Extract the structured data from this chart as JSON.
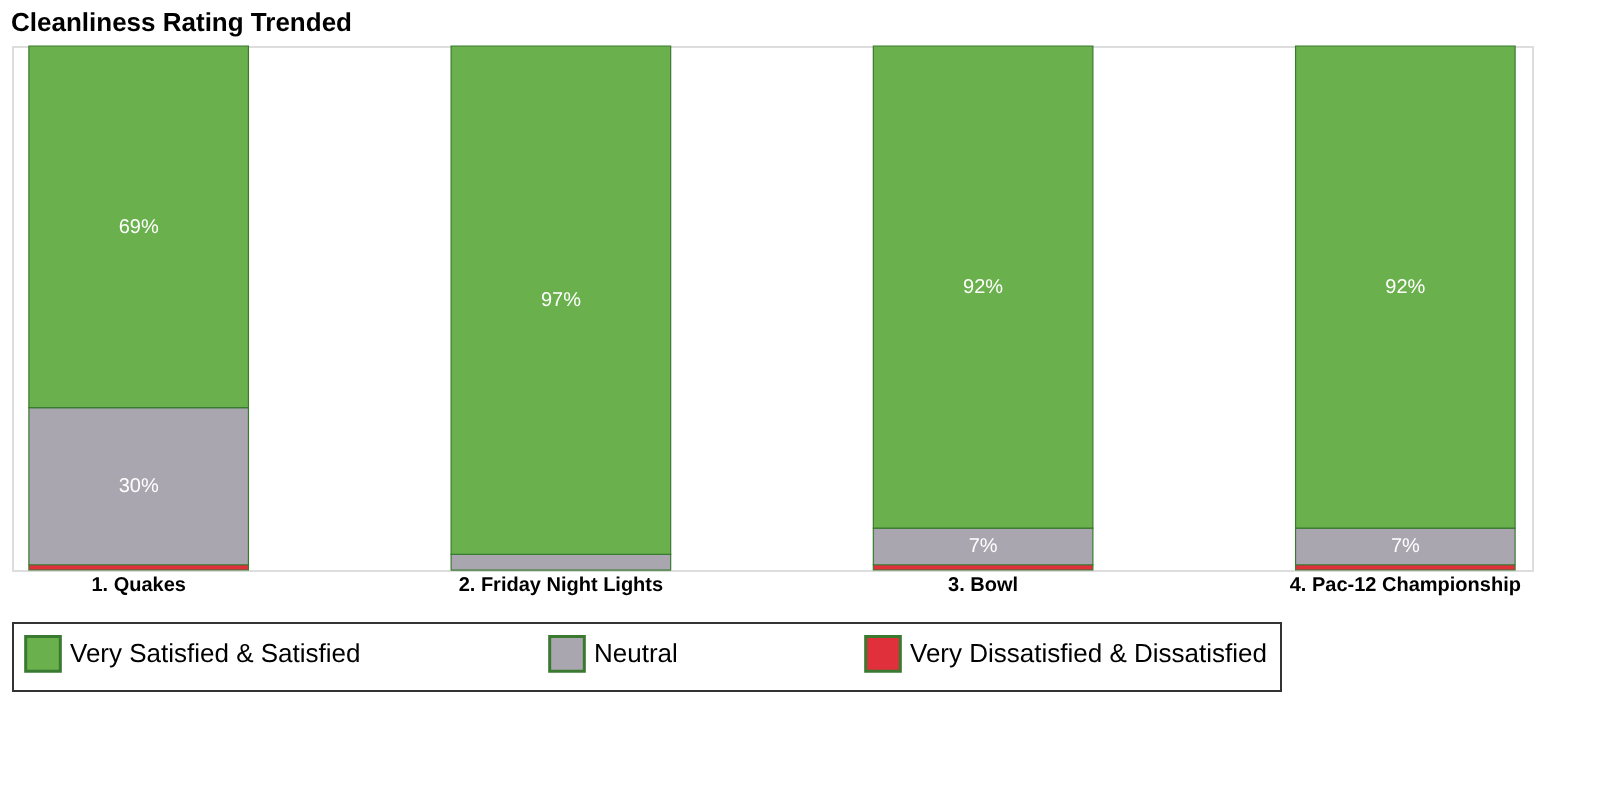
{
  "chart_data": {
    "type": "bar",
    "title": "Cleanliness Rating Trended",
    "stacked": true,
    "categories": [
      "1. Quakes",
      "2. Friday Night Lights",
      "3. Bowl",
      "4. Pac-12 Championship"
    ],
    "series": [
      {
        "name": "Very Dissatisfied & Dissatisfied",
        "color": "#e0303c",
        "values": [
          1,
          0,
          1,
          1
        ],
        "value_labels": [
          null,
          null,
          null,
          null
        ]
      },
      {
        "name": "Neutral",
        "color": "#a9a6b0",
        "values": [
          30,
          3,
          7,
          7
        ],
        "value_labels": [
          "30%",
          null,
          "7%",
          "7%"
        ]
      },
      {
        "name": "Very Satisfied & Satisfied",
        "color": "#6ab04c",
        "values": [
          69,
          97,
          92,
          92
        ],
        "value_labels": [
          "69%",
          "97%",
          "92%",
          "92%"
        ]
      }
    ],
    "ylim": [
      0,
      100
    ],
    "tick_labels": "x",
    "legend": "bottom"
  }
}
